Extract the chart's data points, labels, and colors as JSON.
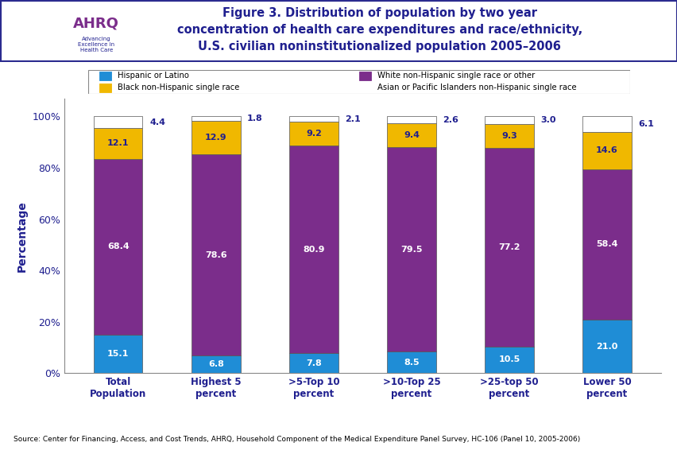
{
  "title": "Figure 3. Distribution of population by two year\nconcentration of health care expenditures and race/ethnicity,\nU.S. civilian noninstitutionalized population 2005–2006",
  "categories": [
    "Total\nPopulation",
    "Highest 5\npercent",
    ">5-Top 10\npercent",
    ">10-Top 25\npercent",
    ">25-top 50\npercent",
    "Lower 50\npercent"
  ],
  "hispanic": [
    15.1,
    6.8,
    7.8,
    8.5,
    10.5,
    21.0
  ],
  "white": [
    68.4,
    78.6,
    80.9,
    79.5,
    77.2,
    58.4
  ],
  "black": [
    12.1,
    12.9,
    9.2,
    9.4,
    9.3,
    14.6
  ],
  "asian": [
    4.4,
    1.8,
    2.1,
    2.6,
    3.0,
    6.1
  ],
  "hispanic_color": "#1F8DD6",
  "white_color": "#7B2D8B",
  "black_color": "#F0B800",
  "asian_color": "#FFFFFF",
  "ylabel": "Percentage",
  "yticks": [
    0,
    20,
    40,
    60,
    80,
    100
  ],
  "ytick_labels": [
    "0%",
    "20%",
    "40%",
    "60%",
    "80%",
    "100%"
  ],
  "legend_labels": [
    "Hispanic or Latino",
    "White non-Hispanic single race or other",
    "Black non-Hispanic single race",
    "Asian or Pacific Islanders non-Hispanic single race"
  ],
  "source": "Source: Center for Financing, Access, and Cost Trends, AHRQ, Household Component of the Medical Expenditure Panel Survey, HC-106 (Panel 10, 2005-2006)",
  "title_color": "#1F1F8F",
  "header_bg": "#2B2B8F",
  "bar_edge_color": "#888888",
  "fig_bg": "#FFFFFF",
  "plot_bg": "#FFFFFF",
  "figsize": [
    8.53,
    5.76
  ],
  "dpi": 100
}
